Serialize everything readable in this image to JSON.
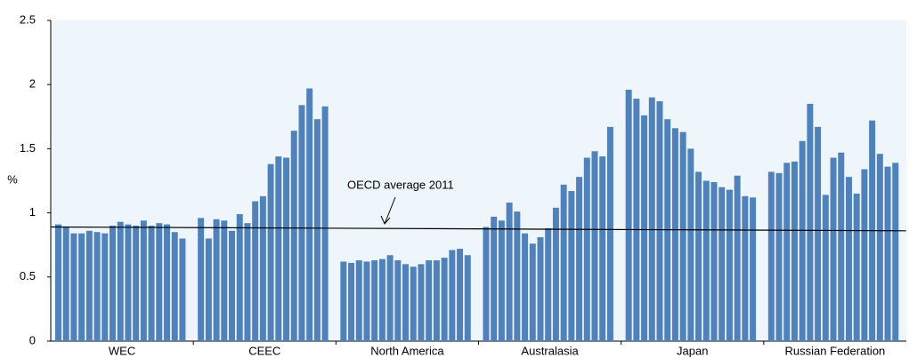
{
  "chart_data": {
    "type": "bar",
    "y_label": "%",
    "color": "#4f81bd",
    "ylim": [
      0,
      2.5
    ],
    "yticks": [
      0,
      0.5,
      1,
      1.5,
      2,
      2.5
    ],
    "groups": [
      {
        "label": "WEC",
        "values": [
          0.91,
          0.89,
          0.84,
          0.84,
          0.86,
          0.85,
          0.84,
          0.9,
          0.93,
          0.91,
          0.9,
          0.94,
          0.9,
          0.92,
          0.91,
          0.85,
          0.8
        ]
      },
      {
        "label": "CEEC",
        "values": [
          0.96,
          0.8,
          0.95,
          0.94,
          0.86,
          0.99,
          0.92,
          1.09,
          1.13,
          1.38,
          1.44,
          1.43,
          1.64,
          1.84,
          1.97,
          1.73,
          1.83
        ]
      },
      {
        "label": "North America",
        "values": [
          0.62,
          0.61,
          0.63,
          0.62,
          0.63,
          0.64,
          0.67,
          0.63,
          0.6,
          0.58,
          0.6,
          0.63,
          0.63,
          0.65,
          0.71,
          0.72,
          0.67
        ]
      },
      {
        "label": "Australasia",
        "values": [
          0.89,
          0.97,
          0.94,
          1.08,
          1.01,
          0.84,
          0.76,
          0.81,
          0.88,
          1.04,
          1.22,
          1.17,
          1.28,
          1.43,
          1.48,
          1.44,
          1.67
        ]
      },
      {
        "label": "Japan",
        "values": [
          1.96,
          1.89,
          1.76,
          1.9,
          1.87,
          1.73,
          1.66,
          1.63,
          1.5,
          1.32,
          1.25,
          1.24,
          1.2,
          1.18,
          1.29,
          1.13,
          1.12
        ]
      },
      {
        "label": "Russian Federation",
        "values": [
          1.32,
          1.31,
          1.39,
          1.4,
          1.56,
          1.85,
          1.67,
          1.14,
          1.43,
          1.47,
          1.28,
          1.15,
          1.34,
          1.72,
          1.46,
          1.36,
          1.39
        ]
      }
    ],
    "reference_line": {
      "label": "OECD average 2011",
      "values": [
        0.89,
        0.86
      ]
    }
  }
}
